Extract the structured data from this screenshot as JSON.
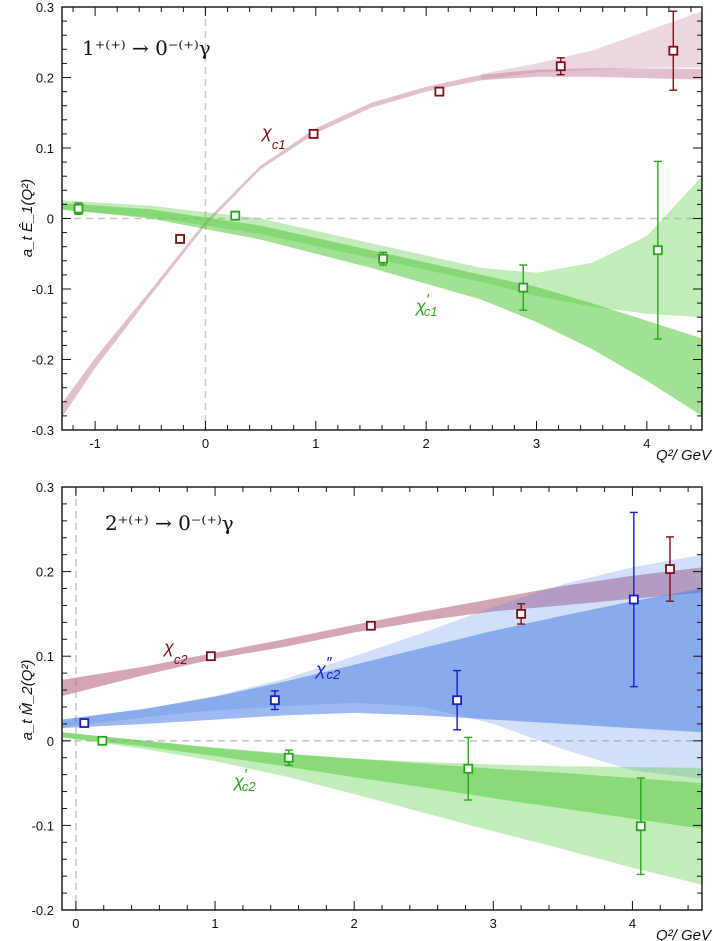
{
  "chart_data": [
    {
      "type": "scatter",
      "process_label": "1⁺⁽⁺⁾ → 0⁻⁽⁺⁾γ",
      "xlabel": "Q²/ GeV",
      "ylabel": "a_t Ê_1(Q²)",
      "xlim": [
        -1.3,
        4.5
      ],
      "ylim": [
        -0.3,
        0.3
      ],
      "xticks": [
        -1,
        0,
        1,
        2,
        3,
        4
      ],
      "yticks": [
        -0.3,
        -0.2,
        -0.1,
        0,
        0.1,
        0.2,
        0.3
      ],
      "xtick_labels": [
        "-1",
        "0",
        "1",
        "2",
        "3",
        "4"
      ],
      "ytick_labels": [
        "-0.3",
        "-0.2",
        "-0.1",
        "0",
        "0.1",
        "0.2",
        "0.3"
      ],
      "series": [
        {
          "name": "χ_c1",
          "label": {
            "main": "χ",
            "sub": "c1",
            "prime": ""
          },
          "color": "#7a0f17",
          "band_color": "#c98aa5",
          "points": [
            {
              "x": -0.23,
              "y": -0.029,
              "err": 0.003
            },
            {
              "x": 0.98,
              "y": 0.12,
              "err": 0.003
            },
            {
              "x": 2.12,
              "y": 0.18,
              "err": 0.003
            },
            {
              "x": 3.22,
              "y": 0.216,
              "err": 0.012
            },
            {
              "x": 4.24,
              "y": 0.238,
              "err": 0.056
            }
          ],
          "bands": [
            {
              "opacity": 0.55,
              "x": [
                -1.3,
                -1.0,
                -0.5,
                0,
                0.5,
                1.0,
                1.5,
                2.0,
                2.5,
                3.0,
                3.5,
                4.0,
                4.5
              ],
              "lo": [
                -0.282,
                -0.212,
                -0.11,
                -0.01,
                0.07,
                0.121,
                0.157,
                0.18,
                0.196,
                0.201,
                0.201,
                0.199,
                0.197
              ],
              "hi": [
                -0.262,
                -0.198,
                -0.102,
                -0.004,
                0.075,
                0.128,
                0.164,
                0.187,
                0.204,
                0.211,
                0.213,
                0.213,
                0.212
              ]
            },
            {
              "opacity": 0.35,
              "x": [
                2.5,
                3.0,
                3.5,
                4.0,
                4.5
              ],
              "lo": [
                0.197,
                0.207,
                0.211,
                0.214,
                0.214
              ],
              "hi": [
                0.205,
                0.22,
                0.238,
                0.266,
                0.294
              ]
            }
          ]
        },
        {
          "name": "χ'_c1",
          "label": {
            "main": "χ",
            "sub": "c1",
            "prime": "′"
          },
          "color": "#2aa51b",
          "band_color": "#52c83c",
          "points": [
            {
              "x": -1.15,
              "y": 0.014,
              "err": 0.008
            },
            {
              "x": 0.27,
              "y": 0.004,
              "err": 0.006
            },
            {
              "x": 1.61,
              "y": -0.057,
              "err": 0.009
            },
            {
              "x": 2.88,
              "y": -0.098,
              "err": 0.032
            },
            {
              "x": 4.1,
              "y": -0.045,
              "err": 0.126
            }
          ],
          "bands": [
            {
              "opacity": 0.35,
              "x": [
                -1.3,
                -0.5,
                0.5,
                1.5,
                2.5,
                3.0,
                3.5,
                4.0,
                4.5
              ],
              "lo": [
                0.012,
                0.002,
                -0.022,
                -0.056,
                -0.09,
                -0.11,
                -0.125,
                -0.135,
                -0.14
              ],
              "hi": [
                0.026,
                0.018,
                0.0,
                -0.035,
                -0.07,
                -0.077,
                -0.063,
                -0.025,
                0.06
              ]
            },
            {
              "opacity": 0.55,
              "x": [
                -1.3,
                -0.5,
                0.5,
                1.5,
                2.5,
                3.0,
                3.5,
                4.0,
                4.5
              ],
              "lo": [
                0.013,
                0.0,
                -0.03,
                -0.07,
                -0.115,
                -0.147,
                -0.185,
                -0.23,
                -0.28
              ],
              "hi": [
                0.022,
                0.013,
                -0.01,
                -0.045,
                -0.08,
                -0.097,
                -0.12,
                -0.145,
                -0.17
              ]
            }
          ]
        }
      ]
    },
    {
      "type": "scatter",
      "process_label": "2⁺⁽⁺⁾ → 0⁻⁽⁺⁾γ",
      "xlabel": "Q²/ GeV",
      "ylabel": "a_t M̂_2(Q²)",
      "xlim": [
        -0.1,
        4.5
      ],
      "ylim": [
        -0.2,
        0.3
      ],
      "xticks": [
        0,
        1,
        2,
        3,
        4
      ],
      "yticks": [
        -0.2,
        -0.1,
        0,
        0.1,
        0.2,
        0.3
      ],
      "xtick_labels": [
        "0",
        "1",
        "2",
        "3",
        "4"
      ],
      "ytick_labels": [
        "-0.2",
        "-0.1",
        "0",
        "0.1",
        "0.2",
        "0.3"
      ],
      "series": [
        {
          "name": "χ_c2",
          "label": {
            "main": "χ",
            "sub": "c2",
            "prime": ""
          },
          "color": "#7a0f17",
          "band_color": "#b86b82",
          "points": [
            {
              "x": 0.97,
              "y": 0.1,
              "err": 0.002
            },
            {
              "x": 2.12,
              "y": 0.136,
              "err": 0.002
            },
            {
              "x": 3.2,
              "y": 0.15,
              "err": 0.012
            },
            {
              "x": 4.27,
              "y": 0.203,
              "err": 0.038
            }
          ],
          "bands": [
            {
              "opacity": 0.6,
              "x": [
                -0.1,
                0.5,
                1.0,
                1.5,
                2.0,
                2.5,
                3.0,
                3.5,
                4.0,
                4.5
              ],
              "lo": [
                0.053,
                0.078,
                0.097,
                0.111,
                0.128,
                0.142,
                0.153,
                0.16,
                0.168,
                0.175
              ],
              "hi": [
                0.072,
                0.088,
                0.104,
                0.12,
                0.137,
                0.153,
                0.168,
                0.183,
                0.195,
                0.205
              ]
            }
          ]
        },
        {
          "name": "χ''_c2",
          "label": {
            "main": "χ",
            "sub": "c2",
            "prime": "″"
          },
          "color": "#1a1ec0",
          "band_color": "#4a7fe6",
          "points": [
            {
              "x": 0.06,
              "y": 0.021,
              "err": 0.004
            },
            {
              "x": 1.43,
              "y": 0.048,
              "err": 0.011
            },
            {
              "x": 2.74,
              "y": 0.048,
              "err": 0.035
            },
            {
              "x": 4.01,
              "y": 0.167,
              "err": 0.103
            }
          ],
          "bands": [
            {
              "opacity": 0.25,
              "x": [
                -0.1,
                0.5,
                1.0,
                1.5,
                2.0,
                2.5,
                3.0,
                3.5,
                4.0,
                4.5
              ],
              "lo": [
                0.016,
                0.028,
                0.036,
                0.041,
                0.045,
                0.04,
                0.02,
                -0.01,
                -0.035,
                -0.045
              ],
              "hi": [
                0.025,
                0.038,
                0.053,
                0.073,
                0.1,
                0.128,
                0.158,
                0.185,
                0.205,
                0.22
              ]
            },
            {
              "opacity": 0.55,
              "x": [
                -0.1,
                0.5,
                1.0,
                1.5,
                2.0,
                2.5,
                3.0,
                3.5,
                4.0,
                4.5
              ],
              "lo": [
                0.015,
                0.02,
                0.025,
                0.03,
                0.033,
                0.03,
                0.025,
                0.02,
                0.015,
                0.01
              ],
              "hi": [
                0.025,
                0.038,
                0.052,
                0.07,
                0.09,
                0.11,
                0.13,
                0.148,
                0.165,
                0.18
              ]
            }
          ]
        },
        {
          "name": "χ'_c2",
          "label": {
            "main": "χ",
            "sub": "c2",
            "prime": "′"
          },
          "color": "#2aa51b",
          "band_color": "#52c83c",
          "points": [
            {
              "x": 0.19,
              "y": 0.0,
              "err": 0.003
            },
            {
              "x": 1.53,
              "y": -0.02,
              "err": 0.009
            },
            {
              "x": 2.82,
              "y": -0.033,
              "err": 0.037
            },
            {
              "x": 4.06,
              "y": -0.101,
              "err": 0.057
            }
          ],
          "bands": [
            {
              "opacity": 0.35,
              "x": [
                -0.1,
                0.5,
                1.0,
                1.5,
                2.0,
                2.5,
                3.0,
                3.5,
                4.0,
                4.5
              ],
              "lo": [
                0.004,
                -0.01,
                -0.024,
                -0.042,
                -0.063,
                -0.085,
                -0.107,
                -0.128,
                -0.15,
                -0.17
              ],
              "hi": [
                0.01,
                0.0,
                -0.009,
                -0.016,
                -0.021,
                -0.025,
                -0.028,
                -0.03,
                -0.031,
                -0.032
              ]
            },
            {
              "opacity": 0.5,
              "x": [
                -0.1,
                0.5,
                1.0,
                1.5,
                2.0,
                2.5,
                3.0,
                3.5,
                4.0,
                4.5
              ],
              "lo": [
                0.004,
                -0.007,
                -0.018,
                -0.03,
                -0.043,
                -0.055,
                -0.068,
                -0.08,
                -0.092,
                -0.104
              ],
              "hi": [
                0.01,
                0.0,
                -0.008,
                -0.015,
                -0.021,
                -0.027,
                -0.033,
                -0.038,
                -0.044,
                -0.05
              ]
            }
          ]
        }
      ]
    }
  ]
}
